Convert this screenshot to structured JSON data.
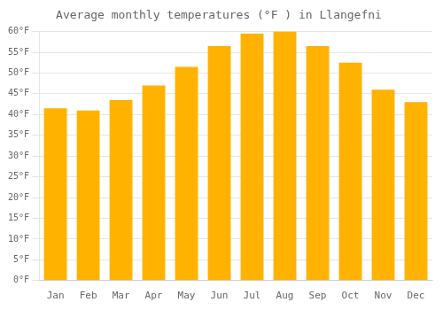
{
  "chart_data": {
    "type": "bar",
    "title": "Average monthly temperatures (°F ) in Llangefni",
    "categories": [
      "Jan",
      "Feb",
      "Mar",
      "Apr",
      "May",
      "Jun",
      "Jul",
      "Aug",
      "Sep",
      "Oct",
      "Nov",
      "Dec"
    ],
    "values": [
      41.5,
      41.0,
      43.5,
      47.0,
      51.5,
      56.5,
      59.5,
      60.0,
      56.5,
      52.5,
      46.0,
      43.0
    ],
    "color": "#FFB300",
    "ylim": [
      0,
      60
    ],
    "yticks": [
      {
        "value": 0,
        "label": "0°F"
      },
      {
        "value": 5,
        "label": "5°F"
      },
      {
        "value": 10,
        "label": "10°F"
      },
      {
        "value": 15,
        "label": "15°F"
      },
      {
        "value": 20,
        "label": "20°F"
      },
      {
        "value": 25,
        "label": "25°F"
      },
      {
        "value": 30,
        "label": "30°F"
      },
      {
        "value": 35,
        "label": "35°F"
      },
      {
        "value": 40,
        "label": "40°F"
      },
      {
        "value": 45,
        "label": "45°F"
      },
      {
        "value": 50,
        "label": "50°F"
      },
      {
        "value": 55,
        "label": "55°F"
      },
      {
        "value": 60,
        "label": "60°F"
      }
    ],
    "grid": true
  }
}
